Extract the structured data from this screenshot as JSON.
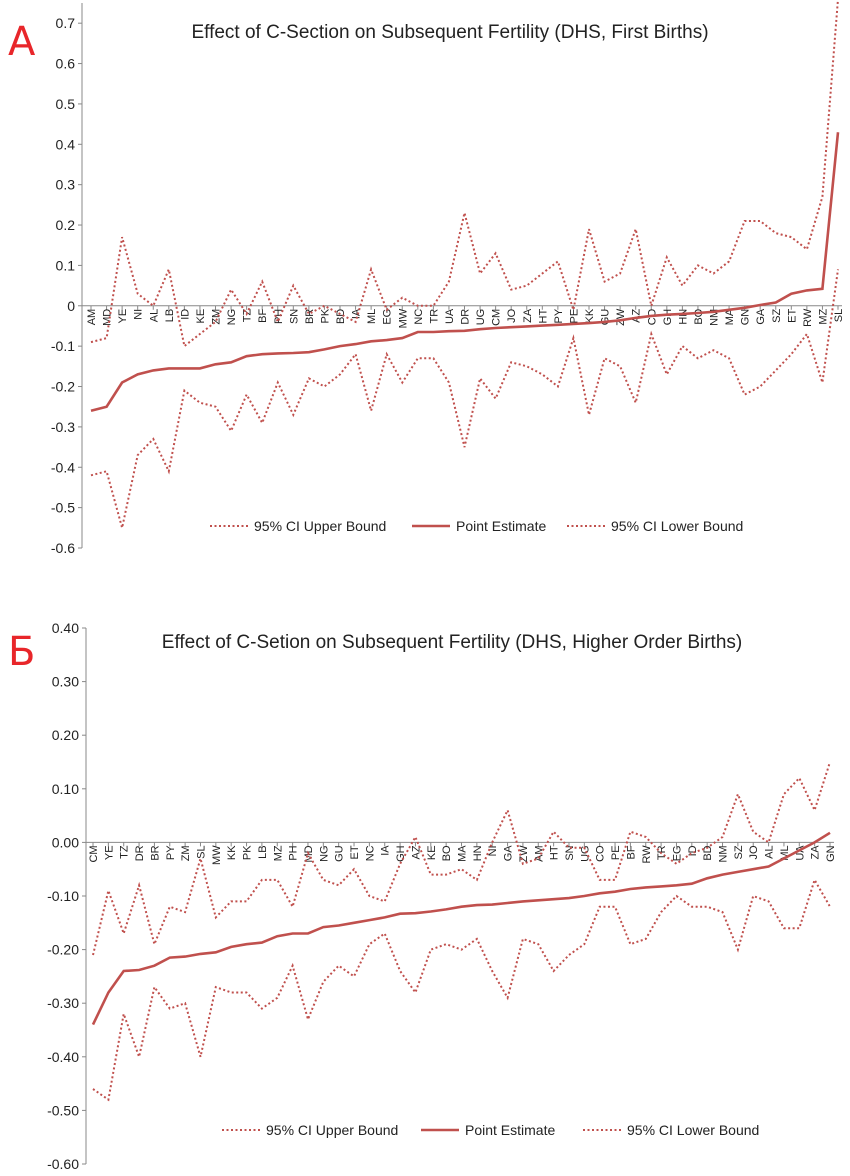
{
  "panels": [
    {
      "letter": "A"
    },
    {
      "letter": "Б"
    }
  ],
  "chart_data": [
    {
      "type": "line",
      "title": "Effect of C-Section on Subsequent Fertility (DHS, First Births)",
      "xlabel": "",
      "ylabel": "",
      "ylim": [
        -0.6,
        0.75
      ],
      "yticks": [
        "0.7",
        "0.6",
        "0.5",
        "0.4",
        "0.3",
        "0.2",
        "0.1",
        "0",
        "-0.1",
        "-0.2",
        "-0.3",
        "-0.4",
        "-0.5",
        "-0.6"
      ],
      "ytick_values": [
        0.7,
        0.6,
        0.5,
        0.4,
        0.3,
        0.2,
        0.1,
        0,
        -0.1,
        -0.2,
        -0.3,
        -0.4,
        -0.5,
        -0.6
      ],
      "categories": [
        "AM",
        "MD",
        "YE",
        "NI",
        "AL",
        "LB",
        "ID",
        "KE",
        "ZM",
        "NG",
        "TZ",
        "BF",
        "PH",
        "SN",
        "BR",
        "PK",
        "BD",
        "IA",
        "ML",
        "EG",
        "MW",
        "NC",
        "TR",
        "UA",
        "DR",
        "UG",
        "CM",
        "JO",
        "ZA",
        "HT",
        "PY",
        "PE",
        "KK",
        "GU",
        "ZW",
        "AZ",
        "CO",
        "GH",
        "HN",
        "BO",
        "NM",
        "MA",
        "GN",
        "GA",
        "SZ",
        "ET",
        "RW",
        "MZ",
        "SL"
      ],
      "legend_position": "bottom",
      "series": [
        {
          "name": "95% CI Upper Bound",
          "style": "dotted",
          "values": [
            -0.09,
            -0.08,
            0.17,
            0.03,
            0.0,
            0.09,
            -0.1,
            -0.07,
            -0.04,
            0.04,
            -0.02,
            0.06,
            -0.04,
            0.05,
            -0.02,
            0.0,
            -0.02,
            -0.04,
            0.09,
            -0.01,
            0.02,
            0.0,
            0.0,
            0.06,
            0.23,
            0.08,
            0.13,
            0.04,
            0.05,
            0.08,
            0.11,
            -0.01,
            0.19,
            0.06,
            0.08,
            0.19,
            0.0,
            0.12,
            0.05,
            0.1,
            0.08,
            0.11,
            0.21,
            0.21,
            0.18,
            0.17,
            0.14,
            0.27,
            0.76
          ]
        },
        {
          "name": "Point Estimate",
          "style": "solid",
          "values": [
            -0.26,
            -0.25,
            -0.19,
            -0.17,
            -0.16,
            -0.155,
            -0.155,
            -0.155,
            -0.145,
            -0.14,
            -0.125,
            -0.12,
            -0.118,
            -0.117,
            -0.115,
            -0.108,
            -0.1,
            -0.095,
            -0.088,
            -0.085,
            -0.08,
            -0.065,
            -0.065,
            -0.063,
            -0.062,
            -0.058,
            -0.055,
            -0.053,
            -0.051,
            -0.049,
            -0.047,
            -0.045,
            -0.043,
            -0.04,
            -0.036,
            -0.03,
            -0.025,
            -0.022,
            -0.02,
            -0.018,
            -0.015,
            -0.01,
            -0.005,
            0.002,
            0.008,
            0.03,
            0.038,
            0.042,
            0.43
          ]
        },
        {
          "name": "95% CI Lower Bound",
          "style": "dotted",
          "values": [
            -0.42,
            -0.41,
            -0.55,
            -0.37,
            -0.33,
            -0.41,
            -0.21,
            -0.24,
            -0.25,
            -0.31,
            -0.22,
            -0.29,
            -0.19,
            -0.27,
            -0.18,
            -0.2,
            -0.17,
            -0.12,
            -0.26,
            -0.12,
            -0.19,
            -0.13,
            -0.13,
            -0.19,
            -0.35,
            -0.18,
            -0.23,
            -0.14,
            -0.15,
            -0.17,
            -0.2,
            -0.08,
            -0.27,
            -0.13,
            -0.15,
            -0.24,
            -0.07,
            -0.17,
            -0.1,
            -0.13,
            -0.11,
            -0.13,
            -0.22,
            -0.2,
            -0.16,
            -0.12,
            -0.07,
            -0.19,
            0.09
          ]
        }
      ]
    },
    {
      "type": "line",
      "title": "Effect of C-Setion on Subsequent Fertility (DHS, Higher Order Births)",
      "xlabel": "",
      "ylabel": "",
      "ylim": [
        -0.6,
        0.4
      ],
      "yticks": [
        "0.40",
        "0.30",
        "0.20",
        "0.10",
        "0.00",
        "-0.10",
        "-0.20",
        "-0.30",
        "-0.40",
        "-0.50",
        "-0.60"
      ],
      "ytick_values": [
        0.4,
        0.3,
        0.2,
        0.1,
        0,
        -0.1,
        -0.2,
        -0.3,
        -0.4,
        -0.5,
        -0.6
      ],
      "categories": [
        "CM",
        "YE",
        "TZ",
        "DR",
        "BR",
        "PY",
        "ZM",
        "SL",
        "MW",
        "KK",
        "PK",
        "LB",
        "MZ",
        "PH",
        "MD",
        "NG",
        "GU",
        "ET",
        "NC",
        "IA",
        "GH",
        "AZ",
        "KE",
        "BO",
        "MA",
        "HN",
        "NI",
        "GA",
        "ZW",
        "AM",
        "HT",
        "SN",
        "UG",
        "CO",
        "PE",
        "BF",
        "RW",
        "TR",
        "EG",
        "ID",
        "BD",
        "NM",
        "SZ",
        "JO",
        "AL",
        "ML",
        "UA",
        "ZA",
        "GN"
      ],
      "legend_position": "bottom",
      "series": [
        {
          "name": "95% CI Upper Bound",
          "style": "dotted",
          "values": [
            -0.21,
            -0.09,
            -0.17,
            -0.08,
            -0.19,
            -0.12,
            -0.13,
            -0.03,
            -0.14,
            -0.11,
            -0.11,
            -0.07,
            -0.07,
            -0.12,
            -0.02,
            -0.07,
            -0.08,
            -0.05,
            -0.1,
            -0.11,
            -0.04,
            0.01,
            -0.06,
            -0.06,
            -0.05,
            -0.07,
            0.0,
            0.06,
            -0.04,
            -0.03,
            0.02,
            -0.01,
            -0.01,
            -0.07,
            -0.07,
            0.02,
            0.01,
            -0.02,
            -0.04,
            -0.02,
            -0.01,
            0.01,
            0.09,
            0.02,
            0.0,
            0.09,
            0.12,
            0.06,
            0.15
          ]
        },
        {
          "name": "Point Estimate",
          "style": "solid",
          "values": [
            -0.34,
            -0.28,
            -0.24,
            -0.238,
            -0.23,
            -0.215,
            -0.213,
            -0.208,
            -0.205,
            -0.195,
            -0.19,
            -0.187,
            -0.175,
            -0.17,
            -0.17,
            -0.158,
            -0.155,
            -0.15,
            -0.145,
            -0.14,
            -0.133,
            -0.132,
            -0.129,
            -0.125,
            -0.12,
            -0.117,
            -0.116,
            -0.113,
            -0.11,
            -0.108,
            -0.106,
            -0.104,
            -0.1,
            -0.095,
            -0.092,
            -0.087,
            -0.084,
            -0.082,
            -0.08,
            -0.077,
            -0.067,
            -0.06,
            -0.055,
            -0.05,
            -0.045,
            -0.03,
            -0.015,
            0.0,
            0.018
          ]
        },
        {
          "name": "95% CI Lower Bound",
          "style": "dotted",
          "values": [
            -0.46,
            -0.48,
            -0.32,
            -0.4,
            -0.27,
            -0.31,
            -0.3,
            -0.4,
            -0.27,
            -0.28,
            -0.28,
            -0.31,
            -0.29,
            -0.23,
            -0.33,
            -0.26,
            -0.23,
            -0.25,
            -0.19,
            -0.17,
            -0.24,
            -0.28,
            -0.2,
            -0.19,
            -0.2,
            -0.18,
            -0.24,
            -0.29,
            -0.18,
            -0.19,
            -0.24,
            -0.21,
            -0.19,
            -0.12,
            -0.12,
            -0.19,
            -0.18,
            -0.13,
            -0.1,
            -0.12,
            -0.12,
            -0.13,
            -0.2,
            -0.1,
            -0.11,
            -0.16,
            -0.16,
            -0.07,
            -0.12
          ]
        }
      ]
    }
  ],
  "colors": {
    "series": "#c0504d",
    "axis": "#888888",
    "panel_letter": "#e8262a"
  }
}
